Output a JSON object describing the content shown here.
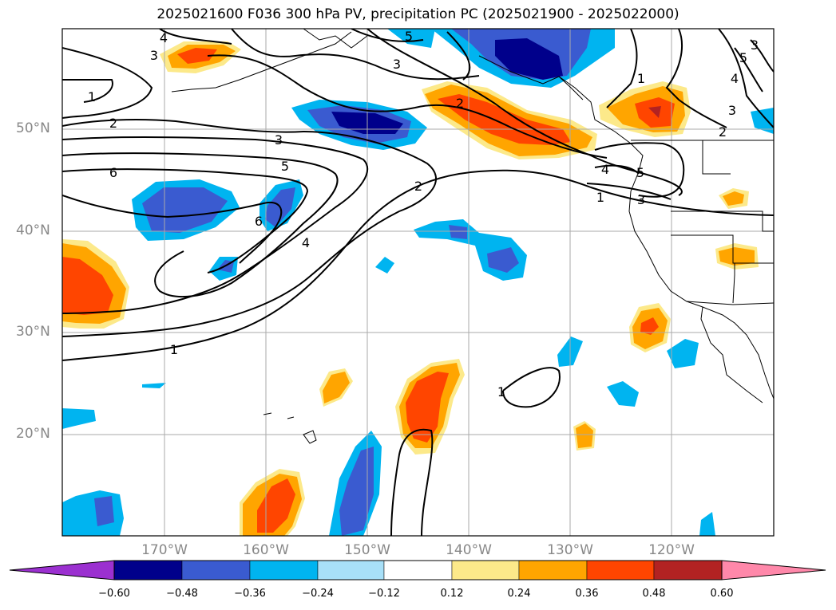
{
  "title": "2025021600 F036 300 hPa PV, precipitation PC (2025021900 - 2025022000)",
  "lat_labels": [
    "50°N",
    "40°N",
    "30°N",
    "20°N"
  ],
  "lon_labels": [
    "170°W",
    "160°W",
    "150°W",
    "140°W",
    "130°W",
    "120°W"
  ],
  "colorbar": {
    "ticks": [
      "−0.60",
      "−0.48",
      "−0.36",
      "−0.24",
      "−0.12",
      "0.12",
      "0.24",
      "0.36",
      "0.48",
      "0.60"
    ],
    "colors": [
      "#9b30d0",
      "#00008b",
      "#3a5bd0",
      "#00b4f0",
      "#a8e0f8",
      "#ffffff",
      "#fce98a",
      "#ffa500",
      "#ff4500",
      "#b22222",
      "#ff88aa"
    ]
  },
  "contour_labels": [
    "4",
    "3",
    "5",
    "3",
    "1",
    "2",
    "3",
    "5",
    "6",
    "6",
    "4",
    "2",
    "2",
    "1",
    "3",
    "4",
    "5",
    "1",
    "3",
    "2",
    "3",
    "4",
    "5",
    "1",
    "1"
  ],
  "colors": {
    "shade_neg1": "#a8e0f8",
    "shade_neg2": "#00b4f0",
    "shade_neg3": "#3a5bd0",
    "shade_neg4": "#00008b",
    "shade_pos1": "#fce98a",
    "shade_pos2": "#ffa500",
    "shade_pos3": "#ff4500",
    "shade_pos4": "#b22222",
    "grid": "#aaaaaa"
  }
}
